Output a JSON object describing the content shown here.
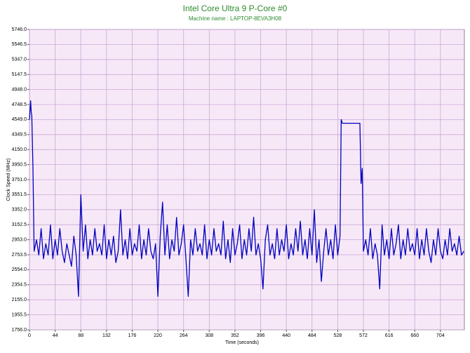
{
  "chart_data": {
    "type": "line",
    "title": "Intel Core Ultra 9 P-Core #0",
    "subtitle": "Machine name : LAPTOP-8EVA3H08",
    "y_label": "Clock Speed (MHz)",
    "x_label": "Time (seconds)",
    "color": "#0000c0",
    "grid": true,
    "xlim": [
      0,
      745
    ],
    "ylim": [
      1756,
      5746
    ],
    "xticks": [
      0,
      44,
      88,
      132,
      176,
      220,
      264,
      308,
      352,
      396,
      440,
      484,
      528,
      572,
      616,
      660,
      704
    ],
    "yticks": [
      {
        "value": 1756,
        "label": "1756.0"
      },
      1955.5,
      {
        "value": 2155,
        "label": "2155.0"
      },
      2354.5,
      {
        "value": 2554,
        "label": "2554.0"
      },
      2753.5,
      {
        "value": 2953,
        "label": "2953.0"
      },
      3152.5,
      {
        "value": 3352,
        "label": "3352.0"
      },
      3551.5,
      {
        "value": 3751,
        "label": "3751.0"
      },
      3950.5,
      {
        "value": 4150,
        "label": "4150.0"
      },
      4349.5,
      {
        "value": 4549,
        "label": "4549.0"
      },
      4748.5,
      {
        "value": 4948,
        "label": "4948.0"
      },
      5147.5,
      {
        "value": 5347,
        "label": "5347.0"
      },
      5546.5,
      {
        "value": 5746,
        "label": "5746.0"
      }
    ],
    "x": [
      0,
      2,
      3,
      4,
      6,
      8,
      12,
      16,
      20,
      24,
      28,
      32,
      36,
      40,
      44,
      48,
      52,
      56,
      60,
      64,
      68,
      72,
      76,
      80,
      84,
      88,
      92,
      96,
      100,
      104,
      108,
      112,
      116,
      120,
      124,
      128,
      132,
      136,
      140,
      144,
      148,
      152,
      156,
      160,
      164,
      168,
      172,
      176,
      180,
      184,
      188,
      192,
      196,
      200,
      204,
      208,
      212,
      216,
      220,
      224,
      228,
      232,
      236,
      240,
      244,
      248,
      252,
      256,
      260,
      264,
      268,
      272,
      276,
      280,
      284,
      288,
      292,
      296,
      300,
      304,
      308,
      312,
      316,
      320,
      324,
      328,
      332,
      336,
      340,
      344,
      348,
      352,
      356,
      360,
      364,
      368,
      372,
      376,
      380,
      384,
      388,
      392,
      396,
      400,
      404,
      408,
      412,
      416,
      420,
      424,
      428,
      432,
      436,
      440,
      444,
      448,
      452,
      456,
      460,
      464,
      468,
      472,
      476,
      480,
      484,
      488,
      492,
      496,
      500,
      504,
      508,
      512,
      516,
      520,
      524,
      528,
      532,
      534,
      536,
      540,
      544,
      548,
      552,
      556,
      560,
      564,
      566,
      568,
      570,
      572,
      576,
      580,
      584,
      588,
      592,
      596,
      600,
      604,
      608,
      612,
      616,
      620,
      624,
      628,
      632,
      636,
      640,
      644,
      648,
      652,
      656,
      660,
      664,
      668,
      672,
      676,
      680,
      684,
      688,
      692,
      696,
      700,
      704,
      708,
      712,
      716,
      720,
      724,
      728,
      732,
      736,
      740,
      744
    ],
    "values": [
      4549,
      4800,
      4650,
      4600,
      3900,
      2800,
      2953,
      2750,
      3100,
      2700,
      2900,
      2750,
      3150,
      2700,
      2953,
      2750,
      3100,
      2800,
      2650,
      2900,
      2750,
      2600,
      3000,
      2750,
      2200,
      3551,
      2800,
      3150,
      2700,
      2953,
      2750,
      3100,
      2800,
      2900,
      2750,
      3152,
      2700,
      2953,
      2750,
      3000,
      2650,
      2800,
      3352,
      2750,
      2953,
      2700,
      3100,
      2750,
      2900,
      2800,
      3152,
      2700,
      2953,
      2750,
      3100,
      2800,
      2700,
      2900,
      2200,
      3000,
      3452,
      2750,
      3152,
      2700,
      2953,
      2800,
      3250,
      2750,
      2900,
      3152,
      2700,
      2200,
      2953,
      2750,
      3100,
      2800,
      2900,
      2750,
      3152,
      2700,
      2953,
      2750,
      3100,
      2800,
      2900,
      2750,
      3200,
      2700,
      2953,
      2650,
      3100,
      2750,
      2900,
      3152,
      2700,
      2953,
      2750,
      3100,
      2800,
      3252,
      2750,
      2900,
      2700,
      2300,
      2953,
      3152,
      2750,
      2900,
      2700,
      3100,
      2750,
      2953,
      2800,
      3152,
      2700,
      2900,
      2750,
      3100,
      2800,
      3200,
      2750,
      2953,
      2700,
      3100,
      2750,
      3352,
      2650,
      2953,
      2400,
      2800,
      3100,
      2750,
      2953,
      2700,
      3152,
      2750,
      3000,
      4549,
      4500,
      4500,
      4500,
      4500,
      4500,
      4500,
      4500,
      4500,
      4500,
      3700,
      3900,
      2800,
      2953,
      2750,
      3100,
      2700,
      2900,
      2750,
      2300,
      3152,
      2750,
      2953,
      2700,
      3100,
      2750,
      2900,
      3152,
      2700,
      2953,
      2750,
      3100,
      2800,
      2900,
      2750,
      3100,
      2700,
      2953,
      2750,
      3100,
      2800,
      2650,
      2953,
      2750,
      3100,
      2800,
      2700,
      2953,
      2750,
      3100,
      2800,
      2900,
      2750,
      3000,
      2750,
      2800
    ]
  }
}
